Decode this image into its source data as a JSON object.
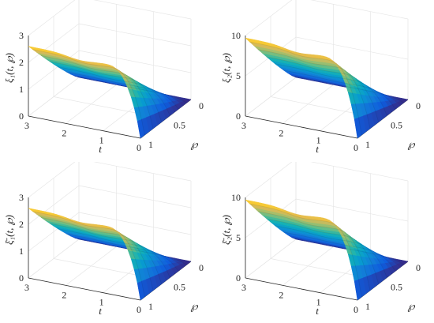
{
  "chart_data": [
    {
      "id": "xi1",
      "type": "surface",
      "zlabel": "ξ₁(t, ℘)",
      "xlabel": "t",
      "ylabel": "℘",
      "xticks": [
        "0",
        "1",
        "2",
        "3"
      ],
      "yticks": [
        "0",
        "0.5",
        "1"
      ],
      "zticks": [
        "0",
        "1",
        "2",
        "3"
      ],
      "xlim": [
        0,
        3
      ],
      "ylim": [
        0,
        1
      ],
      "zlim": [
        0,
        3
      ],
      "amplitude": 2.6,
      "colormap": "parula",
      "grid": true,
      "t_samples": [
        0,
        0.5,
        1,
        1.5,
        2,
        2.5,
        3
      ],
      "p_samples": [
        0,
        0.2,
        0.4,
        0.6,
        0.8,
        1
      ],
      "z_values_at_p1": [
        0.5,
        1.9,
        2.5,
        2.5,
        2.3,
        2.4,
        2.4
      ],
      "z_values_at_p0": [
        0,
        0,
        0,
        0,
        0,
        0,
        0
      ]
    },
    {
      "id": "xi2",
      "type": "surface",
      "zlabel": "ξ₂(t, ℘)",
      "xlabel": "t",
      "ylabel": "℘",
      "xticks": [
        "0",
        "1",
        "2",
        "3"
      ],
      "yticks": [
        "0",
        "0.5",
        "1"
      ],
      "zticks": [
        "0",
        "5",
        "10"
      ],
      "xlim": [
        0,
        3
      ],
      "ylim": [
        0,
        1
      ],
      "zlim": [
        0,
        10
      ],
      "amplitude": 9.7,
      "colormap": "parula",
      "grid": true,
      "t_samples": [
        0,
        0.5,
        1,
        1.5,
        2,
        2.5,
        3
      ],
      "p_samples": [
        0,
        0.2,
        0.4,
        0.6,
        0.8,
        1
      ],
      "z_values_at_p1": [
        1.5,
        6.5,
        9.3,
        9.7,
        9.7,
        9.6,
        9.6
      ],
      "z_values_at_p0": [
        0,
        0,
        0,
        0,
        0,
        0,
        0
      ]
    },
    {
      "id": "xi1bar",
      "type": "surface",
      "zlabel": "ξ̄₁(t, ℘)",
      "xlabel": "t",
      "ylabel": "℘",
      "xticks": [
        "0",
        "1",
        "2",
        "3"
      ],
      "yticks": [
        "0",
        "0.5",
        "1"
      ],
      "zticks": [
        "0",
        "1",
        "2",
        "3"
      ],
      "xlim": [
        0,
        3
      ],
      "ylim": [
        0,
        1
      ],
      "zlim": [
        0,
        3
      ],
      "amplitude": 2.6,
      "colormap": "parula",
      "grid": true,
      "t_samples": [
        0,
        0.5,
        1,
        1.5,
        2,
        2.5,
        3
      ],
      "p_samples": [
        0,
        0.2,
        0.4,
        0.6,
        0.8,
        1
      ],
      "z_values_at_p1": [
        0.5,
        1.9,
        2.5,
        2.5,
        2.3,
        2.4,
        2.4
      ],
      "z_values_at_p0": [
        0,
        0,
        0,
        0,
        0,
        0,
        0
      ]
    },
    {
      "id": "xi2bar",
      "type": "surface",
      "zlabel": "ξ̄₂(t, ℘)",
      "xlabel": "t",
      "ylabel": "℘",
      "xticks": [
        "0",
        "1",
        "2",
        "3"
      ],
      "yticks": [
        "0",
        "0.5",
        "1"
      ],
      "zticks": [
        "0",
        "5",
        "10"
      ],
      "xlim": [
        0,
        3
      ],
      "ylim": [
        0,
        1
      ],
      "zlim": [
        0,
        10
      ],
      "amplitude": 9.7,
      "colormap": "parula",
      "grid": true,
      "t_samples": [
        0,
        0.5,
        1,
        1.5,
        2,
        2.5,
        3
      ],
      "p_samples": [
        0,
        0.2,
        0.4,
        0.6,
        0.8,
        1
      ],
      "z_values_at_p1": [
        1.5,
        6.5,
        9.3,
        9.7,
        9.7,
        9.6,
        9.6
      ],
      "z_values_at_p0": [
        0,
        0,
        0,
        0,
        0,
        0,
        0
      ]
    }
  ]
}
